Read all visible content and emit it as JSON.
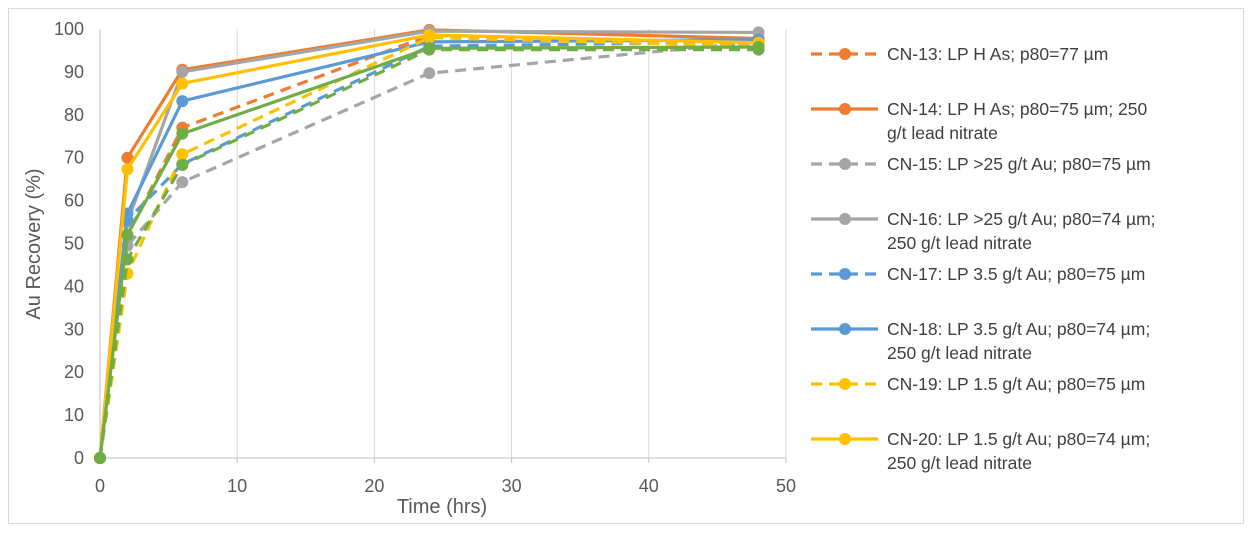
{
  "chart_data": {
    "type": "line",
    "xlabel": "Time (hrs)",
    "ylabel": "Au Recovery (%)",
    "xlim": [
      0,
      50
    ],
    "ylim": [
      0,
      100
    ],
    "xticks": [
      0,
      10,
      20,
      30,
      40,
      50
    ],
    "yticks": [
      0,
      10,
      20,
      30,
      40,
      50,
      60,
      70,
      80,
      90,
      100
    ],
    "grid": "vertical",
    "legend_position": "right",
    "series": [
      {
        "name": "CN-13: LP H As; p80=77 µm",
        "legend_lines": [
          "CN-13: LP H As; p80=77 µm"
        ],
        "color": "#ED7D31",
        "dash": true,
        "points": [
          [
            0,
            0
          ],
          [
            2,
            52
          ],
          [
            6,
            77
          ],
          [
            24,
            98.5
          ],
          [
            48,
            96
          ]
        ]
      },
      {
        "name": "CN-14: LP H As; p80=75 µm; 250 g/t lead nitrate",
        "legend_lines": [
          "CN-14: LP H As; p80=75 µm; 250",
          "g/t lead nitrate"
        ],
        "color": "#ED7D31",
        "dash": false,
        "points": [
          [
            0,
            0
          ],
          [
            2,
            70
          ],
          [
            6,
            90.5
          ],
          [
            24,
            99.8
          ],
          [
            48,
            97.8
          ]
        ]
      },
      {
        "name": "CN-15: LP >25 g/t Au; p80=75 µm",
        "legend_lines": [
          "CN-15: LP >25 g/t Au; p80=75 µm"
        ],
        "color": "#A5A5A5",
        "dash": true,
        "points": [
          [
            0,
            0
          ],
          [
            2,
            49.5
          ],
          [
            6,
            64.3
          ],
          [
            24,
            89.7
          ],
          [
            48,
            97
          ]
        ]
      },
      {
        "name": "CN-16: LP >25 g/t Au; p80=74 µm; 250 g/t lead nitrate",
        "legend_lines": [
          "CN-16: LP >25 g/t Au; p80=74 µm;",
          "250 g/t lead nitrate"
        ],
        "color": "#A5A5A5",
        "dash": false,
        "points": [
          [
            0,
            0
          ],
          [
            2,
            55
          ],
          [
            6,
            90
          ],
          [
            24,
            99.5
          ],
          [
            48,
            99.2
          ]
        ]
      },
      {
        "name": "CN-17: LP 3.5 g/t Au; p80=75 µm",
        "legend_lines": [
          "CN-17: LP 3.5 g/t Au; p80=75 µm"
        ],
        "color": "#5B9BD5",
        "dash": true,
        "points": [
          [
            0,
            0
          ],
          [
            2,
            55.5
          ],
          [
            6,
            68.5
          ],
          [
            24,
            96
          ],
          [
            48,
            97
          ]
        ]
      },
      {
        "name": "CN-18: LP 3.5 g/t Au; p80=74 µm; 250 g/t lead nitrate",
        "legend_lines": [
          "CN-18: LP 3.5 g/t Au; p80=74 µm;",
          "250 g/t lead nitrate"
        ],
        "color": "#5B9BD5",
        "dash": false,
        "points": [
          [
            0,
            0
          ],
          [
            2,
            57
          ],
          [
            6,
            83.2
          ],
          [
            24,
            97
          ],
          [
            48,
            97.5
          ]
        ]
      },
      {
        "name": "CN-19: LP 1.5 g/t Au;  p80=75 µm",
        "legend_lines": [
          "CN-19: LP 1.5 g/t Au;  p80=75 µm"
        ],
        "color": "#FFC000",
        "dash": true,
        "points": [
          [
            0,
            0
          ],
          [
            2,
            43
          ],
          [
            6,
            70.8
          ],
          [
            24,
            98
          ],
          [
            48,
            96
          ]
        ]
      },
      {
        "name": "CN-20: LP 1.5 g/t Au; p80=74 µm; 250 g/t lead nitrate",
        "legend_lines": [
          "CN-20: LP 1.5 g/t Au; p80=74 µm;",
          "250 g/t lead nitrate"
        ],
        "color": "#FFC000",
        "dash": false,
        "points": [
          [
            0,
            0
          ],
          [
            2,
            67.3
          ],
          [
            6,
            87.3
          ],
          [
            24,
            98.6
          ],
          [
            48,
            96.8
          ]
        ]
      },
      {
        "name": "",
        "legend_lines": [],
        "color": "#70AD47",
        "dash": true,
        "points": [
          [
            0,
            0
          ],
          [
            2,
            46.3
          ],
          [
            6,
            68.3
          ],
          [
            24,
            95.2
          ],
          [
            48,
            95.2
          ]
        ]
      },
      {
        "name": "",
        "legend_lines": [],
        "color": "#70AD47",
        "dash": false,
        "points": [
          [
            0,
            0
          ],
          [
            2,
            52
          ],
          [
            6,
            75.6
          ],
          [
            24,
            95.5
          ],
          [
            48,
            95.8
          ]
        ]
      }
    ]
  }
}
